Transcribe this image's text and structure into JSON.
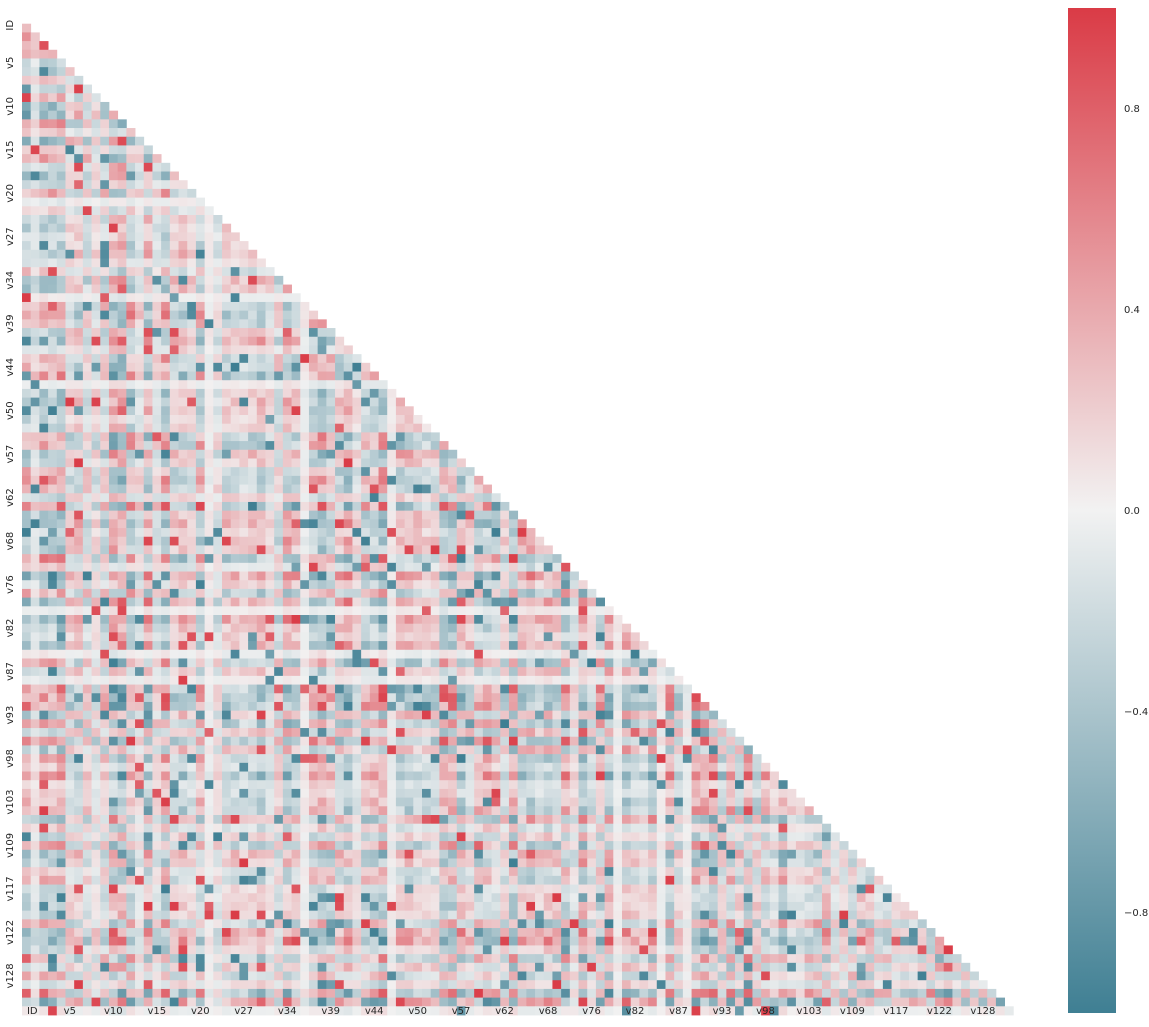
{
  "chart_data": {
    "type": "heatmap",
    "title": "",
    "xlabel": "",
    "ylabel": "",
    "variables_count": 115,
    "mask": "upper-triangle",
    "x_tick_labels": [
      "ID",
      "v5",
      "v10",
      "v15",
      "v20",
      "v27",
      "v34",
      "v39",
      "v44",
      "v50",
      "v57",
      "v62",
      "v68",
      "v76",
      "v82",
      "v87",
      "v93",
      "v98",
      "v103",
      "v109",
      "v117",
      "v122",
      "v128"
    ],
    "y_tick_labels": [
      "ID",
      "v5",
      "v10",
      "v15",
      "v20",
      "v27",
      "v34",
      "v39",
      "v44",
      "v50",
      "v57",
      "v62",
      "v68",
      "v76",
      "v82",
      "v87",
      "v93",
      "v98",
      "v103",
      "v109",
      "v117",
      "v122",
      "v128"
    ],
    "x_tick_indices": [
      0,
      5,
      10,
      15,
      20,
      25,
      30,
      35,
      40,
      45,
      50,
      55,
      60,
      65,
      70,
      75,
      80,
      85,
      90,
      95,
      100,
      105,
      110
    ],
    "y_tick_indices": [
      0,
      5,
      10,
      15,
      20,
      25,
      30,
      35,
      40,
      45,
      50,
      55,
      60,
      65,
      70,
      75,
      80,
      85,
      90,
      95,
      100,
      105,
      110
    ],
    "colorbar": {
      "vmin": -1.0,
      "vmax": 1.0,
      "ticks": [
        0.8,
        0.4,
        0.0,
        -0.4,
        -0.8
      ],
      "tick_labels": [
        "0.8",
        "0.4",
        "0.0",
        "−0.4",
        "−0.8"
      ]
    },
    "colormap": {
      "negative": "#3f7f93",
      "center": "#f2f2f2",
      "positive": "#da3b46"
    },
    "values_note": "lower-triangle correlation values vary in [-1, 1]; individual cell values not legible"
  }
}
